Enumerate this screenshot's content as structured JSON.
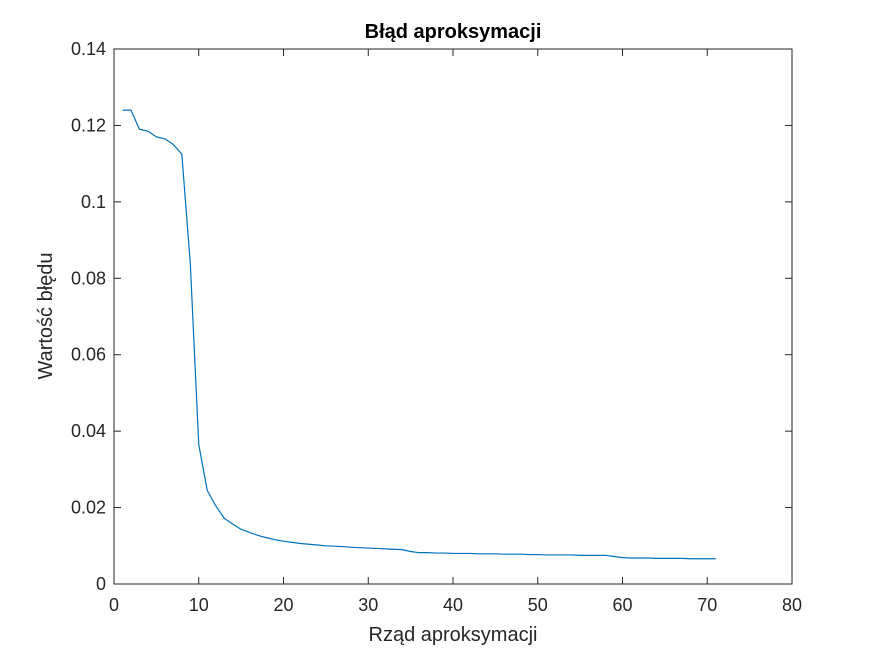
{
  "chart_data": {
    "type": "line",
    "title": "Błąd aproksymacji",
    "xlabel": "Rząd aproksymacji",
    "ylabel": "Wartość błędu",
    "xlim": [
      0,
      80
    ],
    "ylim": [
      0,
      0.14
    ],
    "xticks": [
      0,
      10,
      20,
      30,
      40,
      50,
      60,
      70,
      80
    ],
    "yticks": [
      0,
      0.02,
      0.04,
      0.06,
      0.08,
      0.1,
      0.12,
      0.14
    ],
    "xtick_labels": [
      "0",
      "10",
      "20",
      "30",
      "40",
      "50",
      "60",
      "70",
      "80"
    ],
    "ytick_labels": [
      "0",
      "0.02",
      "0.04",
      "0.06",
      "0.08",
      "0.1",
      "0.12",
      "0.14"
    ],
    "grid": false,
    "line_color": "#0072bd",
    "series": [
      {
        "x": [
          1,
          2,
          3,
          4,
          5,
          6,
          7,
          8,
          9,
          10,
          11,
          12,
          13,
          14,
          15,
          16,
          17,
          18,
          19,
          20,
          21,
          22,
          23,
          24,
          25,
          26,
          27,
          28,
          29,
          30,
          31,
          32,
          33,
          34,
          35,
          36,
          37,
          38,
          39,
          40,
          41,
          42,
          43,
          44,
          45,
          46,
          47,
          48,
          49,
          50,
          51,
          52,
          53,
          54,
          55,
          56,
          57,
          58,
          59,
          60,
          61,
          62,
          63,
          64,
          65,
          66,
          67,
          68,
          69,
          70,
          71
        ],
        "values": [
          0.124,
          0.124,
          0.119,
          0.1185,
          0.117,
          0.1165,
          0.115,
          0.1125,
          0.084,
          0.0365,
          0.0245,
          0.0205,
          0.0172,
          0.0157,
          0.0143,
          0.0135,
          0.0127,
          0.0121,
          0.0116,
          0.0112,
          0.0109,
          0.0106,
          0.0104,
          0.0102,
          0.01,
          0.0099,
          0.0098,
          0.0096,
          0.0095,
          0.0094,
          0.0093,
          0.0092,
          0.0091,
          0.009,
          0.0085,
          0.0082,
          0.0082,
          0.0081,
          0.0081,
          0.008,
          0.008,
          0.008,
          0.0079,
          0.0079,
          0.0079,
          0.0078,
          0.0078,
          0.0078,
          0.0077,
          0.0077,
          0.0076,
          0.0076,
          0.0076,
          0.0076,
          0.0075,
          0.0075,
          0.0075,
          0.0075,
          0.0072,
          0.0069,
          0.0068,
          0.0068,
          0.0068,
          0.0067,
          0.0067,
          0.0067,
          0.0067,
          0.0066,
          0.0066,
          0.0066,
          0.0066
        ]
      }
    ]
  }
}
